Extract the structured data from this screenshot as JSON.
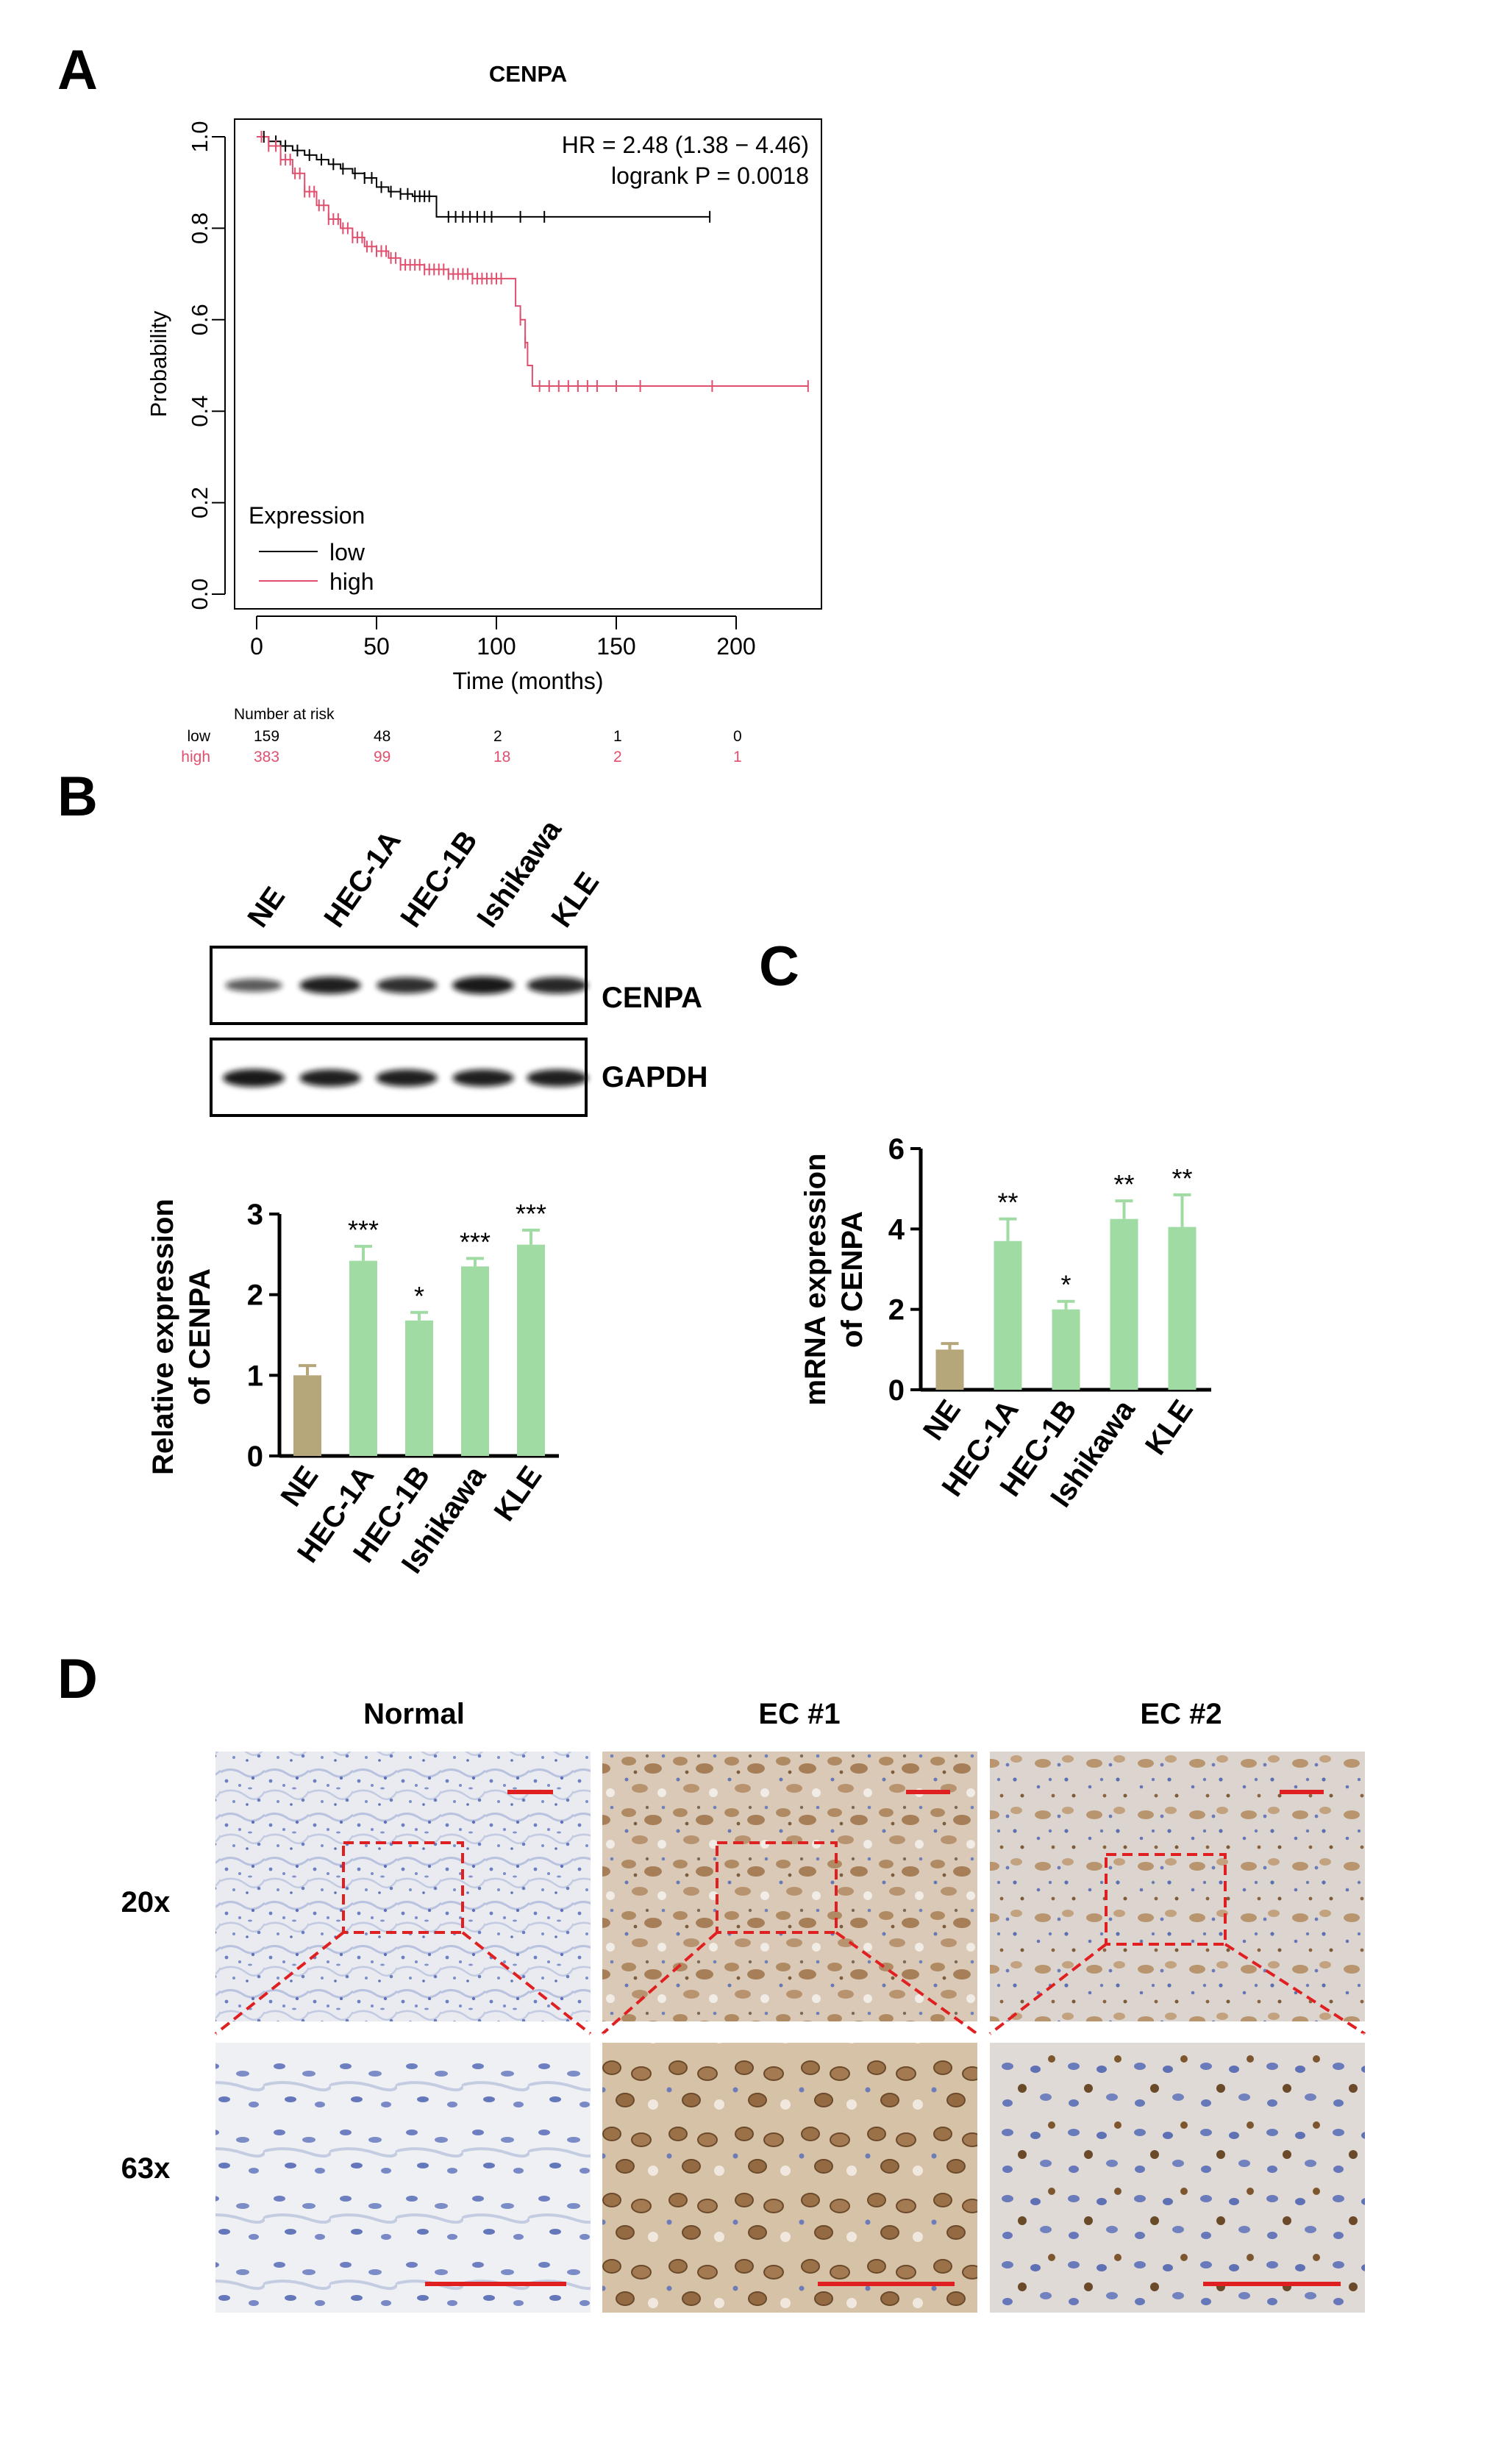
{
  "panels": {
    "A": {
      "letter": "A"
    },
    "B": {
      "letter": "B"
    },
    "C": {
      "letter": "C"
    },
    "D": {
      "letter": "D"
    }
  },
  "colors": {
    "low": "#000000",
    "high": "#e0506e",
    "ne_bar": "#b5a77a",
    "ec_bar": "#9fdba2",
    "scale_bar": "#e02020",
    "zoom_box": "#e02020"
  },
  "chart_data": [
    {
      "id": "km",
      "type": "line",
      "title": "CENPA",
      "xlabel": "Time (months)",
      "ylabel": "Probability",
      "xlim": [
        0,
        230
      ],
      "ylim": [
        0,
        1.0
      ],
      "xticks": [
        "0",
        "50",
        "100",
        "150",
        "200"
      ],
      "xtick_values": [
        0,
        50,
        100,
        150,
        200
      ],
      "yticks": [
        "0.0",
        "0.2",
        "0.4",
        "0.6",
        "0.8",
        "1.0"
      ],
      "ytick_values": [
        0,
        0.2,
        0.4,
        0.6,
        0.8,
        1.0
      ],
      "annotation": [
        "HR = 2.48 (1.38 − 4.46)",
        "logrank P = 0.0018"
      ],
      "legend_title": "Expression",
      "legend_position": "bottom-left",
      "series": [
        {
          "name": "low",
          "color": "#000000",
          "x": [
            0,
            5,
            10,
            15,
            20,
            25,
            30,
            35,
            40,
            45,
            50,
            55,
            60,
            65,
            70,
            74,
            75,
            100,
            150,
            189
          ],
          "y": [
            1.0,
            0.99,
            0.98,
            0.97,
            0.96,
            0.95,
            0.94,
            0.93,
            0.92,
            0.91,
            0.89,
            0.88,
            0.875,
            0.87,
            0.87,
            0.87,
            0.825,
            0.825,
            0.825,
            0.825
          ],
          "censor_x": [
            3,
            8,
            12,
            17,
            22,
            27,
            32,
            36,
            41,
            45,
            48,
            52,
            56,
            60,
            63,
            66,
            68,
            70,
            72,
            80,
            83,
            86,
            89,
            92,
            95,
            98,
            110,
            120,
            189
          ]
        },
        {
          "name": "high",
          "color": "#e0506e",
          "x": [
            0,
            5,
            10,
            15,
            20,
            25,
            30,
            35,
            40,
            45,
            50,
            55,
            60,
            70,
            80,
            90,
            100,
            105,
            108,
            110,
            112,
            113,
            115,
            120,
            150,
            200,
            230
          ],
          "y": [
            1.0,
            0.98,
            0.95,
            0.92,
            0.88,
            0.85,
            0.82,
            0.8,
            0.78,
            0.76,
            0.75,
            0.735,
            0.72,
            0.71,
            0.7,
            0.69,
            0.69,
            0.69,
            0.63,
            0.6,
            0.55,
            0.5,
            0.455,
            0.455,
            0.455,
            0.455,
            0.455
          ],
          "censor_x": [
            2,
            5,
            8,
            10,
            12,
            14,
            16,
            18,
            20,
            22,
            24,
            26,
            28,
            30,
            32,
            34,
            36,
            38,
            40,
            42,
            44,
            46,
            48,
            50,
            52,
            54,
            56,
            58,
            60,
            62,
            64,
            66,
            68,
            70,
            72,
            74,
            76,
            78,
            80,
            82,
            84,
            86,
            88,
            90,
            92,
            94,
            96,
            98,
            100,
            102,
            110,
            112,
            118,
            122,
            126,
            130,
            134,
            138,
            142,
            150,
            160,
            190,
            230
          ]
        }
      ],
      "risk_table": {
        "title": "Number at risk",
        "rows": [
          {
            "label": "low",
            "values": [
              "159",
              "48",
              "2",
              "1",
              "0"
            ]
          },
          {
            "label": "high",
            "values": [
              "383",
              "99",
              "18",
              "2",
              "1"
            ]
          }
        ]
      }
    },
    {
      "id": "bar_b",
      "type": "bar",
      "ylabel": "Relative expression\nof CENPA",
      "ylabel_lines": [
        "Relative expression",
        "of CENPA"
      ],
      "ylim": [
        0,
        3
      ],
      "yticks": [
        "0",
        "1",
        "2",
        "3"
      ],
      "ytick_values": [
        0,
        1,
        2,
        3
      ],
      "categories": [
        "NE",
        "HEC-1A",
        "HEC-1B",
        "Ishikawa",
        "KLE"
      ],
      "values": [
        1.0,
        2.42,
        1.68,
        2.35,
        2.62
      ],
      "errors": [
        0.12,
        0.18,
        0.1,
        0.1,
        0.18
      ],
      "significance": [
        "",
        "***",
        "*",
        "***",
        "***"
      ]
    },
    {
      "id": "bar_c",
      "type": "bar",
      "ylabel_lines": [
        "mRNA expression",
        "of CENPA"
      ],
      "ylim": [
        0,
        6
      ],
      "yticks": [
        "0",
        "2",
        "4",
        "6"
      ],
      "ytick_values": [
        0,
        2,
        4,
        6
      ],
      "categories": [
        "NE",
        "HEC-1A",
        "HEC-1B",
        "Ishikawa",
        "KLE"
      ],
      "values": [
        1.0,
        3.7,
        2.0,
        4.25,
        4.05
      ],
      "errors": [
        0.15,
        0.55,
        0.2,
        0.45,
        0.8
      ],
      "significance": [
        "",
        "**",
        "*",
        "**",
        "**"
      ]
    }
  ],
  "western_blot": {
    "lane_labels": [
      "NE",
      "HEC-1A",
      "HEC-1B",
      "Ishikawa",
      "KLE"
    ],
    "rows": [
      {
        "label": "CENPA",
        "intensities": [
          0.55,
          0.95,
          0.85,
          1.0,
          0.9
        ]
      },
      {
        "label": "GAPDH",
        "intensities": [
          1.0,
          0.95,
          0.95,
          0.95,
          0.95
        ]
      }
    ]
  },
  "ihc": {
    "columns": [
      "Normal",
      "EC #1",
      "EC #2"
    ],
    "rows": [
      "20x",
      "63x"
    ]
  }
}
